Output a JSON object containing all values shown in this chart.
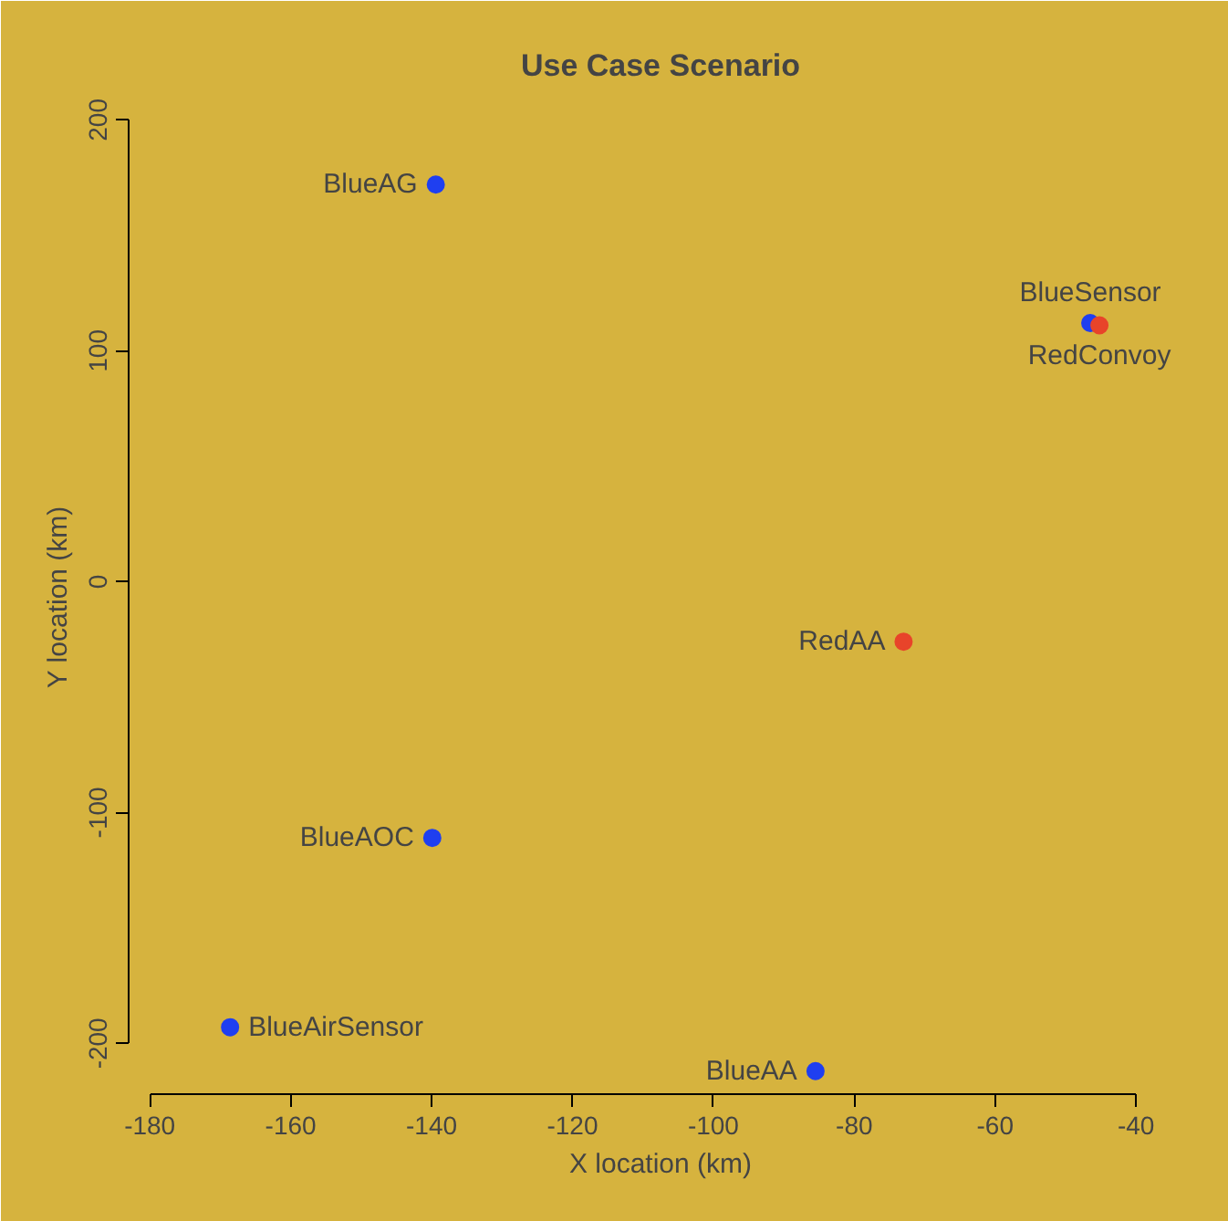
{
  "chart_data": {
    "type": "scatter",
    "title": "Use Case Scenario",
    "xlabel": "X location (km)",
    "ylabel": "Y location  (km)",
    "xlim": [
      -183,
      -32
    ],
    "ylim": [
      -222,
      212
    ],
    "xticks": [
      -180,
      -160,
      -140,
      -120,
      -100,
      -80,
      -60,
      -40
    ],
    "yticks": [
      -200,
      -100,
      0,
      100,
      200
    ],
    "grid": false,
    "marker": "circle",
    "series": [
      {
        "color": "#1f3ff0",
        "x": [
          -139.4,
          -46.5,
          -139.9,
          -168.6,
          -85.5
        ],
        "values": [
          172,
          112,
          -111,
          -193,
          -212
        ]
      },
      {
        "color": "#e8442a",
        "x": [
          -45.2,
          -73
        ],
        "values": [
          111,
          -26
        ]
      }
    ],
    "annotations": [
      {
        "text": "BlueAG",
        "x": -139.4,
        "y": 172
      },
      {
        "text": "BlueSensor",
        "x": -46.5,
        "y": 112
      },
      {
        "text": "RedConvoy",
        "x": -45.2,
        "y": 111
      },
      {
        "text": "RedAA",
        "x": -73,
        "y": -26
      },
      {
        "text": "BlueAOC",
        "x": -139.9,
        "y": -111
      },
      {
        "text": "BlueAirSensor",
        "x": -168.6,
        "y": -193
      },
      {
        "text": "BlueAA",
        "x": -85.5,
        "y": -212
      }
    ]
  }
}
